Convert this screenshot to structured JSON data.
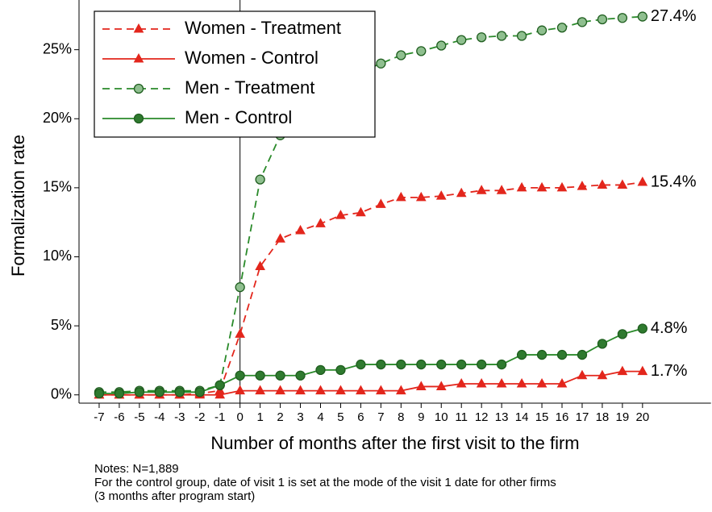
{
  "chart_data": {
    "type": "line",
    "xlabel": "Number of months after the first visit to the firm",
    "ylabel": "Formalization rate",
    "x": [
      -7,
      -6,
      -5,
      -4,
      -3,
      -2,
      -1,
      0,
      1,
      2,
      3,
      4,
      5,
      6,
      7,
      8,
      9,
      10,
      11,
      12,
      13,
      14,
      15,
      16,
      17,
      18,
      19,
      20
    ],
    "xlim": [
      -8,
      23.4
    ],
    "xticks": [
      -7,
      -6,
      -5,
      -4,
      -3,
      -2,
      -1,
      0,
      1,
      2,
      3,
      4,
      5,
      6,
      7,
      8,
      9,
      10,
      11,
      12,
      13,
      14,
      15,
      16,
      17,
      18,
      19,
      20
    ],
    "ylim": [
      -0.6,
      28.6
    ],
    "yticks": [
      {
        "value": 0,
        "label": "0%"
      },
      {
        "value": 5,
        "label": "5%"
      },
      {
        "value": 10,
        "label": "10%"
      },
      {
        "value": 15,
        "label": "15%"
      },
      {
        "value": 20,
        "label": "20%"
      },
      {
        "value": 25,
        "label": "25%"
      }
    ],
    "reference_x": 0,
    "legend": "upper left",
    "series": [
      {
        "name": "Women - Treatment",
        "color": "#e3261c",
        "line_style": "dashed",
        "marker": "triangle",
        "marker_fill": "#e3261c",
        "values": [
          0,
          0,
          0,
          0,
          0,
          0.1,
          0.3,
          4.4,
          9.3,
          11.3,
          11.9,
          12.4,
          13.0,
          13.2,
          13.8,
          14.3,
          14.3,
          14.4,
          14.6,
          14.8,
          14.8,
          15.0,
          15.0,
          15.0,
          15.1,
          15.2,
          15.2,
          15.4
        ],
        "value_labels": [
          null,
          null,
          null,
          null,
          null,
          null,
          null,
          null,
          null,
          null,
          null,
          null,
          null,
          null,
          null,
          null,
          null,
          null,
          null,
          null,
          null,
          null,
          null,
          null,
          null,
          null,
          null,
          "15.4%"
        ]
      },
      {
        "name": "Women - Control",
        "color": "#e3261c",
        "line_style": "solid",
        "marker": "triangle",
        "marker_fill": "#e3261c",
        "values": [
          0,
          0,
          0,
          0,
          0,
          0,
          0,
          0.3,
          0.3,
          0.3,
          0.3,
          0.3,
          0.3,
          0.3,
          0.3,
          0.3,
          0.6,
          0.6,
          0.8,
          0.8,
          0.8,
          0.8,
          0.8,
          0.8,
          1.4,
          1.4,
          1.7,
          1.7
        ],
        "value_labels": [
          null,
          null,
          null,
          null,
          null,
          null,
          null,
          null,
          null,
          null,
          null,
          null,
          null,
          null,
          null,
          null,
          null,
          null,
          null,
          null,
          null,
          null,
          null,
          null,
          null,
          null,
          null,
          "1.7%"
        ]
      },
      {
        "name": "Men - Treatment",
        "color": "#2a8a2a",
        "line_style": "dashed",
        "marker": "circle",
        "marker_fill": "#8fbf8f",
        "values": [
          0.2,
          0.2,
          0.3,
          0.3,
          0.3,
          0.3,
          0.7,
          7.8,
          15.6,
          18.8,
          20.5,
          21.8,
          22.7,
          23.4,
          24.0,
          24.6,
          24.9,
          25.3,
          25.7,
          25.9,
          26.0,
          26.0,
          26.4,
          26.6,
          27.0,
          27.2,
          27.3,
          27.4
        ],
        "value_labels": [
          null,
          null,
          null,
          null,
          null,
          null,
          null,
          null,
          null,
          null,
          null,
          null,
          null,
          null,
          null,
          null,
          null,
          null,
          null,
          null,
          null,
          null,
          null,
          null,
          null,
          null,
          null,
          "27.4%"
        ]
      },
      {
        "name": "Men - Control",
        "color": "#2a8a2a",
        "line_style": "solid",
        "marker": "circle",
        "marker_fill": "#2f7a2f",
        "values": [
          0.1,
          0.1,
          0.2,
          0.2,
          0.2,
          0.2,
          0.7,
          1.4,
          1.4,
          1.4,
          1.4,
          1.8,
          1.8,
          2.2,
          2.2,
          2.2,
          2.2,
          2.2,
          2.2,
          2.2,
          2.2,
          2.9,
          2.9,
          2.9,
          2.9,
          3.7,
          4.4,
          4.8
        ],
        "value_labels": [
          null,
          null,
          null,
          null,
          null,
          null,
          null,
          null,
          null,
          null,
          null,
          null,
          null,
          null,
          null,
          null,
          null,
          null,
          null,
          null,
          null,
          null,
          null,
          null,
          null,
          null,
          null,
          "4.8%"
        ]
      }
    ],
    "notes": [
      "Notes: N=1,889",
      "For the control group, date of visit 1 is set at the mode of the visit 1 date for other firms",
      "(3 months after program start)"
    ]
  }
}
